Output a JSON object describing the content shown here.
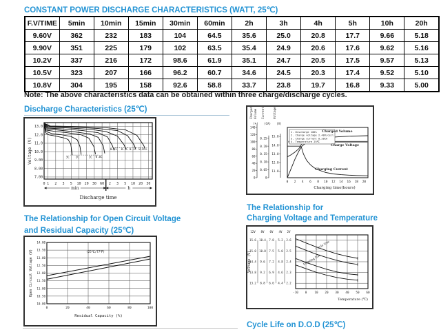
{
  "page": {
    "main_title": "CONSTANT POWER DISCHARGE CHARACTERISTICS (WATT, 25℃)",
    "note": "Note: The above characteristics data can be obtained within three charge/discharge cycles.",
    "cycle_life_title": "Cycle Life on D.O.D (25℃)",
    "accent_color": "#2293d4"
  },
  "table": {
    "headers": [
      "F.V/TIME",
      "5min",
      "10min",
      "15min",
      "30min",
      "60min",
      "2h",
      "3h",
      "4h",
      "5h",
      "10h",
      "20h"
    ],
    "rows": [
      [
        "9.60V",
        "362",
        "232",
        "183",
        "104",
        "64.5",
        "35.6",
        "25.0",
        "20.8",
        "17.7",
        "9.66",
        "5.18"
      ],
      [
        "9.90V",
        "351",
        "225",
        "179",
        "102",
        "63.5",
        "35.4",
        "24.9",
        "20.6",
        "17.6",
        "9.62",
        "5.16"
      ],
      [
        "10.2V",
        "337",
        "216",
        "172",
        "98.6",
        "61.9",
        "35.1",
        "24.7",
        "20.5",
        "17.5",
        "9.57",
        "5.13"
      ],
      [
        "10.5V",
        "323",
        "207",
        "166",
        "96.2",
        "60.7",
        "34.6",
        "24.5",
        "20.3",
        "17.4",
        "9.52",
        "5.10"
      ],
      [
        "10.8V",
        "304",
        "195",
        "158",
        "92.6",
        "58.8",
        "33.7",
        "23.8",
        "19.7",
        "16.8",
        "9.33",
        "5.00"
      ]
    ]
  },
  "chart_data": [
    {
      "type": "line",
      "title": "Discharge Characteristics (25℃)",
      "ylabel": "Voltage (V)",
      "xlabel": "Discharge time",
      "x_groups": [
        "min",
        "h"
      ],
      "ylim": [
        6.75,
        13.45
      ],
      "ytick_values": [
        13,
        12,
        11,
        10,
        9,
        8,
        7
      ],
      "ytick_labels": [
        "13.0",
        "12.0",
        "11.0",
        "10.0",
        "9.00",
        "8.00",
        "7.00"
      ],
      "xtick_labels": [
        "1",
        "2",
        "3",
        "5",
        "10",
        "20",
        "30",
        "60",
        "2",
        "3",
        "5",
        "10",
        "20",
        "30"
      ],
      "dotted": [
        [
          2.9,
          6.6,
          9.6
        ],
        [
          8.4,
          12.6,
          10.45
        ]
      ],
      "series": [
        {
          "label": "3C",
          "points": [
            [
              -0.45,
              13.0
            ],
            [
              -0.3,
              12.25
            ],
            [
              0.1,
              12.0
            ],
            [
              1.0,
              11.85
            ],
            [
              2.0,
              11.65
            ],
            [
              2.6,
              11.45
            ],
            [
              2.95,
              10.9
            ],
            [
              3.15,
              9.6
            ]
          ]
        },
        {
          "label": "2C",
          "points": [
            [
              -0.45,
              13.05
            ],
            [
              -0.25,
              12.4
            ],
            [
              0.5,
              12.15
            ],
            [
              1.8,
              12.0
            ],
            [
              3.0,
              11.8
            ],
            [
              3.8,
              11.4
            ],
            [
              4.15,
              10.6
            ],
            [
              4.3,
              9.65
            ]
          ]
        },
        {
          "label": "1C",
          "points": [
            [
              -0.45,
              13.1
            ],
            [
              -0.2,
              12.55
            ],
            [
              1.0,
              12.4
            ],
            [
              2.5,
              12.25
            ],
            [
              4.3,
              12.0
            ],
            [
              5.3,
              11.6
            ],
            [
              5.95,
              10.6
            ],
            [
              6.15,
              9.7
            ]
          ]
        },
        {
          "label": "0.6C",
          "points": [
            [
              -0.45,
              13.15
            ],
            [
              -0.1,
              12.7
            ],
            [
              1.5,
              12.55
            ],
            [
              3.5,
              12.35
            ],
            [
              5.4,
              12.1
            ],
            [
              6.5,
              11.7
            ],
            [
              7.15,
              10.7
            ],
            [
              7.35,
              9.8
            ]
          ]
        },
        {
          "label": "0.4C",
          "points": [
            [
              -0.45,
              13.2
            ],
            [
              0.0,
              12.8
            ],
            [
              2.0,
              12.7
            ],
            [
              4.5,
              12.5
            ],
            [
              6.5,
              12.25
            ],
            [
              7.7,
              11.75
            ],
            [
              8.35,
              10.7
            ],
            [
              8.55,
              10.15
            ]
          ]
        },
        {
          "label": "0.2C",
          "points": [
            [
              -0.45,
              13.25
            ],
            [
              0.1,
              12.9
            ],
            [
              2.5,
              12.82
            ],
            [
              5.5,
              12.65
            ],
            [
              7.5,
              12.4
            ],
            [
              9.0,
              11.85
            ],
            [
              9.85,
              10.8
            ],
            [
              10.1,
              10.3
            ]
          ]
        },
        {
          "label": "0.1C",
          "points": [
            [
              -0.45,
              13.3
            ],
            [
              0.2,
              13.0
            ],
            [
              3.0,
              12.93
            ],
            [
              6.5,
              12.75
            ],
            [
              9.0,
              12.5
            ],
            [
              10.3,
              11.9
            ],
            [
              11.15,
              10.8
            ],
            [
              11.35,
              10.35
            ]
          ]
        },
        {
          "label": "0.05C",
          "points": [
            [
              -0.45,
              13.35
            ],
            [
              0.3,
              13.05
            ],
            [
              4.0,
              12.98
            ],
            [
              7.5,
              12.85
            ],
            [
              10.0,
              12.6
            ],
            [
              11.5,
              11.95
            ],
            [
              12.35,
              10.8
            ],
            [
              12.55,
              10.45
            ]
          ]
        }
      ],
      "curve_labels": [
        [
          "3C",
          2.55,
          9.25
        ],
        [
          "2C",
          3.8,
          9.25
        ],
        [
          "1C",
          5.5,
          9.25
        ],
        [
          "0.6C",
          6.6,
          9.3
        ],
        [
          "0.4C",
          8.5,
          10.18
        ],
        [
          "0.2C",
          9.9,
          10.18
        ],
        [
          "0.1C",
          11.0,
          10.18
        ],
        [
          "0.05C",
          12.3,
          10.18
        ]
      ]
    },
    {
      "type": "line",
      "title": "Charging Characteristics",
      "xlabel": "Charging time(hours)",
      "xlim": [
        0,
        21
      ],
      "xtick_labels": [
        "0",
        "2",
        "4",
        "6",
        "8",
        "10",
        "12",
        "14",
        "16",
        "18",
        "20"
      ],
      "xtick_values": [
        0,
        2,
        4,
        6,
        8,
        10,
        12,
        14,
        16,
        18,
        20
      ],
      "legend": [
        "1. Discharge 100%",
        "2. Charge voltage 2.40V/cell",
        "3. Charge current 0.20CA",
        "4. Temperature 25℃"
      ],
      "axes": [
        {
          "key": "volume",
          "title": [
            "Charged",
            "Volume"
          ],
          "unit": "(%)",
          "x": 14,
          "min": 0,
          "max": 140,
          "fmin": 0,
          "fmax": 1,
          "tick_values": [
            0,
            20,
            40,
            60,
            80,
            100,
            120,
            140
          ],
          "tick_labels": [
            "0",
            "20",
            "40",
            "60",
            "80",
            "100",
            "120",
            "140"
          ]
        },
        {
          "key": "current",
          "title": [
            "Current"
          ],
          "unit": "(CA)",
          "x": 31,
          "min": 0,
          "max": 0.25,
          "fmin": 0,
          "fmax": 0.785,
          "tick_values": [
            0,
            0.05,
            0.1,
            0.15,
            0.2,
            0.25
          ],
          "tick_labels": [
            "0",
            "0.05",
            "0.10",
            "0.15",
            "0.20",
            "0.25"
          ]
        },
        {
          "key": "voltage",
          "title": [
            "Voltage"
          ],
          "unit": "(V)",
          "x": 48,
          "min": 11,
          "max": 15,
          "fmin": 0.13,
          "fmax": 0.82,
          "tick_values": [
            11,
            12,
            13,
            14,
            15
          ],
          "tick_labels": [
            "11.0",
            "12.0",
            "13.0",
            "14.0",
            "15.0"
          ]
        }
      ],
      "ref_line": {
        "axis": "voltage",
        "value": 14.4,
        "color": "#999999",
        "width": 2
      },
      "series": [
        {
          "name": "Charged Volume",
          "axis": "volume",
          "stroke": "#1a1a1a",
          "width": 0.9,
          "points": [
            [
              0,
              0
            ],
            [
              1,
              26
            ],
            [
              2,
              52
            ],
            [
              3,
              74
            ],
            [
              3.8,
              88
            ],
            [
              5,
              98
            ],
            [
              6,
              103
            ],
            [
              8,
              108
            ],
            [
              10,
              111
            ],
            [
              12,
              113
            ],
            [
              14,
              114.5
            ],
            [
              16,
              115.5
            ],
            [
              18,
              116
            ],
            [
              21,
              117
            ]
          ]
        },
        {
          "name": "Charge Voltage",
          "axis": "voltage",
          "stroke": "#1a1a1a",
          "width": 0.9,
          "points": [
            [
              0,
              12.65
            ],
            [
              1,
              12.9
            ],
            [
              2,
              13.2
            ],
            [
              3,
              13.6
            ],
            [
              3.6,
              14.05
            ],
            [
              4.2,
              14.32
            ],
            [
              5,
              14.38
            ],
            [
              21,
              14.38
            ]
          ]
        },
        {
          "name": "Charging Current",
          "axis": "current",
          "stroke": "#1a1a1a",
          "width": 0.9,
          "points": [
            [
              0,
              0.2
            ],
            [
              3.4,
              0.2
            ],
            [
              3.7,
              0.19
            ],
            [
              4.2,
              0.15
            ],
            [
              5,
              0.11
            ],
            [
              6,
              0.082
            ],
            [
              7,
              0.063
            ],
            [
              8,
              0.05
            ],
            [
              10,
              0.033
            ],
            [
              12,
              0.024
            ],
            [
              14,
              0.019
            ],
            [
              16,
              0.016
            ],
            [
              18,
              0.014
            ],
            [
              21,
              0.012
            ]
          ]
        }
      ],
      "curve_labels": [
        [
          "Charged Volume",
          "volume",
          13.0,
          127
        ],
        [
          "Charge Voltage",
          "voltage",
          15.0,
          13.88
        ],
        [
          "Charging Current",
          "current",
          11.5,
          0.047
        ]
      ]
    },
    {
      "type": "line",
      "title_line1": "The Relationship for Open Circuit Voltage",
      "title_line2": "and Residual Capacity (25℃)",
      "ylabel": "Open Circuit Voltage (V)",
      "xlabel": "Residual Capacity (%)",
      "annotation": "(25℃/77℉)",
      "annotation_pos": [
        47,
        13.32
      ],
      "ylim": [
        10,
        14
      ],
      "ytick_values": [
        14,
        13.5,
        13,
        12.5,
        12,
        11.5,
        11,
        10.5,
        10
      ],
      "ytick_labels": [
        "14.00",
        "13.50",
        "13.00",
        "12.50",
        "12.00",
        "11.50",
        "11.00",
        "10.50",
        "10.00"
      ],
      "xtick_values": [
        0,
        20,
        40,
        60,
        80,
        100
      ],
      "xtick_labels": [
        "0",
        "20",
        "40",
        "60",
        "80",
        "100"
      ],
      "series": [
        {
          "name": "upper",
          "points": [
            [
              0,
              11.83
            ],
            [
              100,
              13.1
            ]
          ]
        },
        {
          "name": "lower",
          "points": [
            [
              0,
              11.6
            ],
            [
              100,
              12.92
            ]
          ]
        }
      ]
    },
    {
      "type": "line",
      "title_line1": "The Relationship for",
      "title_line2": "Charging Voltage and Temperature",
      "ylabel": "Voltage (V)",
      "xlabel": "Temperature (℃)",
      "scale_headers": [
        "12V",
        "8V",
        "6V",
        "4V",
        "2V"
      ],
      "scale_row_values": [
        2.6,
        2.5,
        2.4,
        2.3,
        2.2
      ],
      "scale_rows": [
        [
          "15.6",
          "10.4",
          "7.8",
          "5.2",
          "2.6"
        ],
        [
          "15.0",
          "10.0",
          "7.5",
          "5.0",
          "2.5"
        ],
        [
          "14.4",
          "9.6",
          "7.2",
          "4.8",
          "2.4"
        ],
        [
          "13.8",
          "9.2",
          "6.9",
          "4.6",
          "2.3"
        ],
        [
          "13.2",
          "8.8",
          "6.6",
          "4.4",
          "2.2"
        ]
      ],
      "ylim": [
        2.15,
        2.65
      ],
      "grid_y": [
        2.2,
        2.3,
        2.4,
        2.5,
        2.6
      ],
      "xtick_values": [
        -10,
        0,
        10,
        20,
        30,
        40,
        50,
        60
      ],
      "xtick_labels": [
        "-10",
        "0",
        "10",
        "20",
        "30",
        "40",
        "50",
        "60"
      ],
      "band_labels": [
        [
          "Cycle Use",
          10,
          2.51,
          -30
        ],
        [
          "Floating Use",
          -2,
          2.365,
          -30
        ]
      ],
      "series": [
        {
          "name": "cycle-upper",
          "points": [
            [
              -10,
              2.615
            ],
            [
              0,
              2.575
            ],
            [
              10,
              2.537
            ],
            [
              20,
              2.503
            ],
            [
              30,
              2.473
            ],
            [
              40,
              2.45
            ],
            [
              50,
              2.432
            ]
          ]
        },
        {
          "name": "cycle-lower",
          "points": [
            [
              -10,
              2.545
            ],
            [
              0,
              2.507
            ],
            [
              10,
              2.47
            ],
            [
              20,
              2.44
            ],
            [
              30,
              2.412
            ],
            [
              40,
              2.39
            ],
            [
              50,
              2.375
            ]
          ]
        },
        {
          "name": "float-upper",
          "points": [
            [
              -10,
              2.43
            ],
            [
              0,
              2.394
            ],
            [
              10,
              2.36
            ],
            [
              20,
              2.33
            ],
            [
              30,
              2.305
            ],
            [
              40,
              2.288
            ],
            [
              50,
              2.278
            ]
          ]
        },
        {
          "name": "float-lower",
          "points": [
            [
              -10,
              2.37
            ],
            [
              0,
              2.335
            ],
            [
              10,
              2.302
            ],
            [
              20,
              2.275
            ],
            [
              30,
              2.253
            ],
            [
              40,
              2.238
            ],
            [
              50,
              2.228
            ]
          ]
        }
      ]
    }
  ]
}
